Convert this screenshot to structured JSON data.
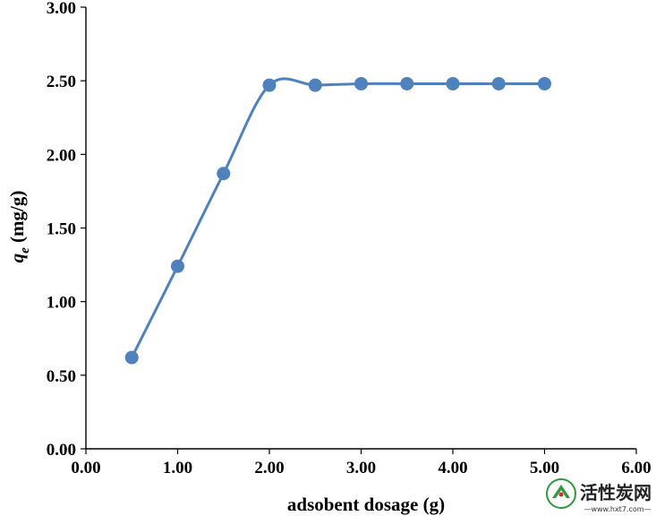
{
  "chart_data": {
    "type": "scatter",
    "title": "",
    "xlabel": "adsobent dosage (g)",
    "ylabel": {
      "main": "q",
      "subscript": "e",
      "unit": " (mg/g)"
    },
    "xlim": [
      0,
      6
    ],
    "ylim": [
      0,
      3
    ],
    "xticks": [
      "0.00",
      "1.00",
      "2.00",
      "3.00",
      "4.00",
      "5.00",
      "6.00"
    ],
    "yticks": [
      "0.00",
      "0.50",
      "1.00",
      "1.50",
      "2.00",
      "2.50",
      "3.00"
    ],
    "grid": false,
    "legend": "none",
    "line_style": "smoothed",
    "color": "#4F81BD",
    "series": [
      {
        "x": [
          0.5,
          1.0,
          1.5,
          2.0,
          2.5,
          3.0,
          3.5,
          4.0,
          4.5,
          5.0
        ],
        "y": [
          0.62,
          1.24,
          1.87,
          2.47,
          2.47,
          2.48,
          2.48,
          2.48,
          2.48,
          2.48
        ]
      }
    ]
  },
  "watermark": {
    "brand": "活性炭网",
    "site": "—www.hxt7.com—",
    "icon": "hxt-logo-icon"
  }
}
